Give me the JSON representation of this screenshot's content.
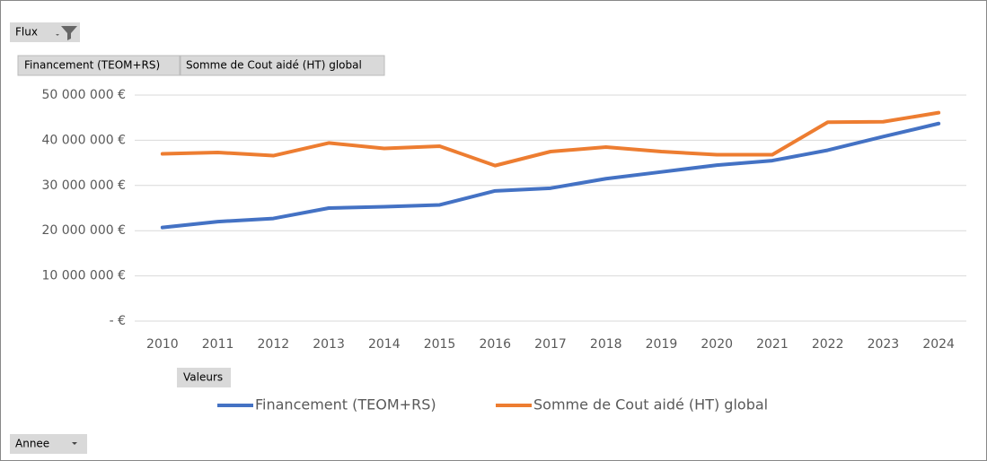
{
  "pivot": {
    "filter_field": "Flux",
    "values_button": "Valeurs",
    "axis_field": "Annee"
  },
  "chart_data": {
    "type": "line",
    "categories": [
      "2010",
      "2011",
      "2012",
      "2013",
      "2014",
      "2015",
      "2016",
      "2017",
      "2018",
      "2019",
      "2020",
      "2021",
      "2022",
      "2023",
      "2024"
    ],
    "series": [
      {
        "name": "Financement (TEOM+RS)",
        "color": "#4472c4",
        "values": [
          20700000,
          22000000,
          22700000,
          25000000,
          25300000,
          25700000,
          28800000,
          29400000,
          31500000,
          33000000,
          34500000,
          35500000,
          37800000,
          40800000,
          43700000
        ]
      },
      {
        "name": "Somme de Cout aidé (HT) global",
        "color": "#ed7d31",
        "values": [
          37000000,
          37300000,
          36600000,
          39400000,
          38200000,
          38700000,
          34400000,
          37500000,
          38500000,
          37500000,
          36800000,
          36800000,
          44000000,
          44100000,
          46100000
        ]
      }
    ],
    "ylim": [
      0,
      50000000
    ],
    "yticks": [
      {
        "value": 0,
        "label": "- €"
      },
      {
        "value": 10000000,
        "label": "10 000 000 €"
      },
      {
        "value": 20000000,
        "label": "20 000 000 €"
      },
      {
        "value": 30000000,
        "label": "30 000 000 €"
      },
      {
        "value": 40000000,
        "label": "40 000 000 €"
      },
      {
        "value": 50000000,
        "label": "50 000 000 €"
      }
    ],
    "grid": true,
    "legend": "bottom"
  }
}
